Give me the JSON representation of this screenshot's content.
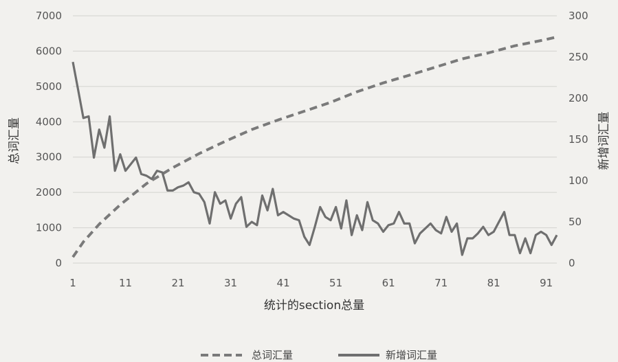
{
  "chart_data": {
    "type": "line",
    "xlabel": "统计的section总量",
    "ylabel_left": "总词汇量",
    "ylabel_right": "新增词汇量",
    "x_range": [
      1,
      93
    ],
    "x_ticks": [
      1,
      11,
      21,
      31,
      41,
      51,
      61,
      71,
      81,
      91
    ],
    "ylim_left": [
      0,
      7000
    ],
    "ylim_right": [
      0,
      300
    ],
    "yticks_left": [
      0,
      1000,
      2000,
      3000,
      4000,
      5000,
      6000,
      7000
    ],
    "yticks_right": [
      0,
      50,
      100,
      150,
      200,
      250,
      300
    ],
    "grid": "horizontal",
    "legend": "bottom",
    "series": [
      {
        "name": "总词汇量",
        "axis": "left",
        "style": "dashed",
        "color": "#7a7a7a",
        "x": [
          1,
          3,
          6,
          10,
          15,
          20,
          25,
          30,
          35,
          40,
          45,
          50,
          55,
          60,
          65,
          70,
          75,
          80,
          85,
          90,
          93
        ],
        "values": [
          170,
          600,
          1100,
          1650,
          2250,
          2700,
          3100,
          3450,
          3780,
          4050,
          4300,
          4550,
          4850,
          5100,
          5320,
          5550,
          5780,
          5950,
          6150,
          6300,
          6400
        ]
      },
      {
        "name": "新增词汇量",
        "axis": "right",
        "style": "solid",
        "color": "#6f6f6f",
        "x": [
          1,
          2,
          3,
          4,
          5,
          6,
          7,
          8,
          9,
          10,
          11,
          12,
          13,
          14,
          15,
          16,
          17,
          18,
          19,
          20,
          21,
          22,
          23,
          24,
          25,
          26,
          27,
          28,
          29,
          30,
          31,
          32,
          33,
          34,
          35,
          36,
          37,
          38,
          39,
          40,
          41,
          42,
          43,
          44,
          45,
          46,
          47,
          48,
          49,
          50,
          51,
          52,
          53,
          54,
          55,
          56,
          57,
          58,
          59,
          60,
          61,
          62,
          63,
          64,
          65,
          66,
          67,
          68,
          69,
          70,
          71,
          72,
          73,
          74,
          75,
          76,
          77,
          78,
          79,
          80,
          81,
          82,
          83,
          84,
          85,
          86,
          87,
          88,
          89,
          90,
          91,
          92,
          93
        ],
        "values": [
          244,
          210,
          176,
          178,
          128,
          162,
          140,
          178,
          112,
          132,
          112,
          120,
          128,
          108,
          106,
          102,
          112,
          110,
          88,
          88,
          92,
          94,
          98,
          86,
          84,
          74,
          48,
          86,
          72,
          76,
          54,
          72,
          80,
          44,
          50,
          46,
          82,
          64,
          90,
          58,
          62,
          58,
          54,
          52,
          32,
          22,
          44,
          68,
          56,
          52,
          68,
          42,
          76,
          34,
          58,
          40,
          74,
          52,
          48,
          38,
          46,
          48,
          62,
          48,
          48,
          24,
          36,
          42,
          48,
          40,
          36,
          56,
          38,
          48,
          10,
          30,
          30,
          36,
          44,
          34,
          38,
          50,
          62,
          34,
          34,
          12,
          30,
          12,
          34,
          38,
          34,
          22,
          34
        ]
      }
    ]
  }
}
